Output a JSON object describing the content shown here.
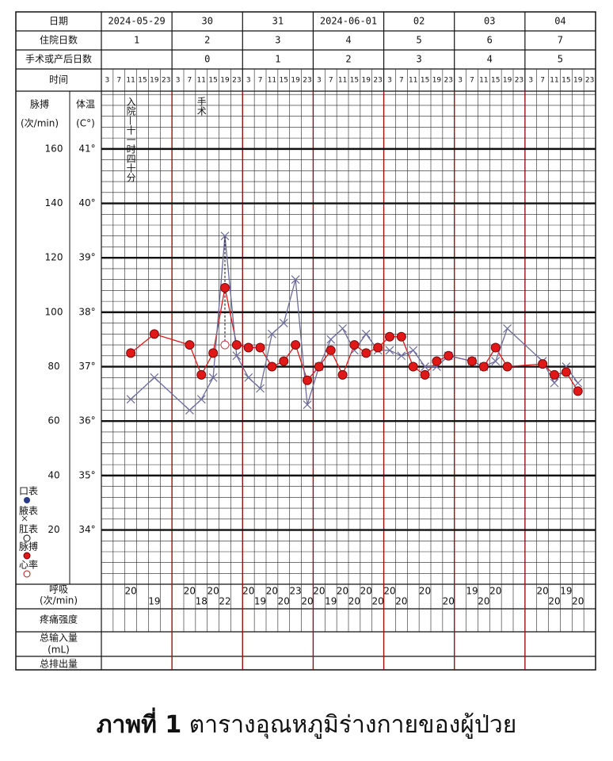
{
  "header": {
    "row_labels": [
      "日期",
      "住院日数",
      "手术或产后日数",
      "时间"
    ],
    "dates": [
      "2024-05-29",
      "30",
      "31",
      "2024-06-01",
      "02",
      "03",
      "04"
    ],
    "hospital_days": [
      1,
      2,
      3,
      4,
      5,
      6,
      7
    ],
    "post_op_days": [
      null,
      0,
      1,
      2,
      3,
      4,
      5
    ],
    "time_slots": [
      3,
      7,
      11,
      15,
      19,
      23
    ]
  },
  "chart_data": {
    "type": "line",
    "column_labels": [
      "脉搏",
      "(次/min)",
      "体温",
      "(C°)"
    ],
    "annotations": [
      "入院—十一时四十分",
      "手术"
    ],
    "legend": [
      "口表",
      "腋表",
      "肛表",
      "脉搏",
      "心率"
    ],
    "series": [
      {
        "name": "脉搏",
        "color": "#e01818",
        "values": [
          null,
          null,
          85,
          null,
          92,
          null,
          null,
          88,
          77,
          85,
          109,
          88,
          87,
          87,
          80,
          82,
          88,
          75,
          80,
          86,
          77,
          88,
          85,
          87,
          91,
          91,
          80,
          77,
          82,
          84,
          null,
          82,
          80,
          87,
          80,
          null,
          null,
          81,
          77,
          78,
          71,
          null
        ]
      },
      {
        "name": "腋表",
        "color": "#6c6c9c",
        "axis": "y2",
        "values": [
          null,
          null,
          36.4,
          null,
          36.8,
          null,
          null,
          36.2,
          36.4,
          36.8,
          39.4,
          37.2,
          36.8,
          36.6,
          37.6,
          37.8,
          38.6,
          36.3,
          37.0,
          37.5,
          37.7,
          37.3,
          37.6,
          37.3,
          37.3,
          37.2,
          37.3,
          37.0,
          37.0,
          37.2,
          null,
          37.1,
          37.0,
          37.1,
          37.7,
          null,
          null,
          37.1,
          36.7,
          37.0,
          36.7,
          null
        ]
      }
    ],
    "cooled_temperature": [
      null,
      null,
      null,
      null,
      null,
      null,
      null,
      null,
      null,
      null,
      37.4,
      null,
      null,
      null,
      null,
      null,
      null,
      null,
      null,
      null,
      null,
      null,
      null,
      null,
      null,
      null,
      null,
      null,
      null,
      null,
      null,
      null,
      null,
      null,
      null,
      null,
      null,
      null,
      null,
      null,
      null,
      null
    ],
    "ylim": [
      0,
      180
    ],
    "yticks": [
      20,
      40,
      60,
      80,
      100,
      120,
      140,
      160
    ],
    "y2lim": [
      33,
      42
    ],
    "y2ticks": [
      {
        "value": 34,
        "label": "34°"
      },
      {
        "value": 35,
        "label": "35°"
      },
      {
        "value": 36,
        "label": "36°"
      },
      {
        "value": 37,
        "label": "37°"
      },
      {
        "value": 38,
        "label": "38°"
      },
      {
        "value": 39,
        "label": "39°"
      },
      {
        "value": 40,
        "label": "40°"
      },
      {
        "value": 41,
        "label": "41°"
      }
    ],
    "grid": true
  },
  "bottom_rows": {
    "labels": [
      "呼吸",
      "(次/min)",
      "疼痛强度",
      "总输入量",
      "(mL)",
      "总排出量"
    ],
    "respiration": [
      null,
      null,
      20,
      null,
      19,
      null,
      null,
      20,
      18,
      20,
      22,
      null,
      20,
      19,
      20,
      20,
      23,
      20,
      20,
      19,
      20,
      20,
      20,
      20,
      20,
      20,
      null,
      20,
      null,
      20,
      null,
      19,
      20,
      20,
      null,
      null,
      null,
      20,
      20,
      19,
      20,
      null
    ]
  },
  "caption": {
    "label": "ภาพที่ 1",
    "text": " ตารางอุณหภูมิร่างกายของผู้ป่วย"
  }
}
